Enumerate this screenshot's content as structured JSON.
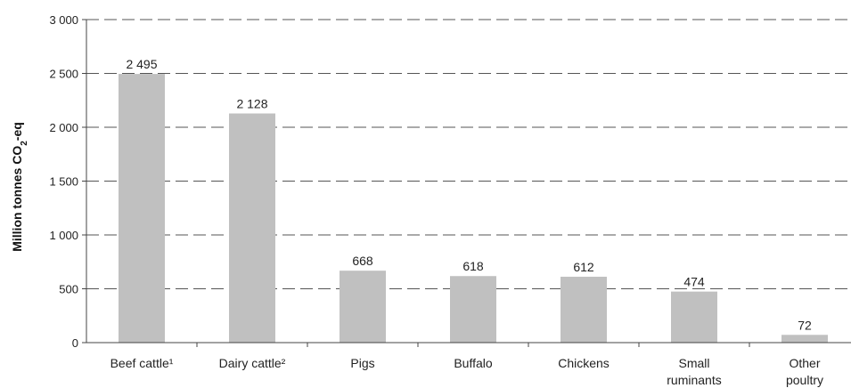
{
  "chart_data": {
    "type": "bar",
    "title": "",
    "xlabel": "",
    "ylabel": "Million tonnes CO2-eq",
    "ylabel_parts": {
      "main": "Million tonnes CO",
      "sub": "2",
      "tail": "-eq"
    },
    "ylim": [
      0,
      3000
    ],
    "yticks": [
      0,
      500,
      1000,
      1500,
      2000,
      2500,
      3000
    ],
    "ytick_labels": [
      "0",
      "500",
      "1 000",
      "1 500",
      "2 000",
      "2 500",
      "3 000"
    ],
    "grid": "horizontal dashed",
    "legend": "none",
    "bar_color": "#c0c0c0",
    "categories": [
      {
        "lines": [
          "Beef cattle¹"
        ]
      },
      {
        "lines": [
          "Dairy cattle²"
        ]
      },
      {
        "lines": [
          "Pigs"
        ]
      },
      {
        "lines": [
          "Buffalo"
        ]
      },
      {
        "lines": [
          "Chickens"
        ]
      },
      {
        "lines": [
          "Small",
          "ruminants"
        ]
      },
      {
        "lines": [
          "Other",
          "poultry"
        ]
      }
    ],
    "values": [
      2495,
      2128,
      668,
      618,
      612,
      474,
      72
    ],
    "value_labels": [
      "2 495",
      "2 128",
      "668",
      "618",
      "612",
      "474",
      "72"
    ]
  }
}
